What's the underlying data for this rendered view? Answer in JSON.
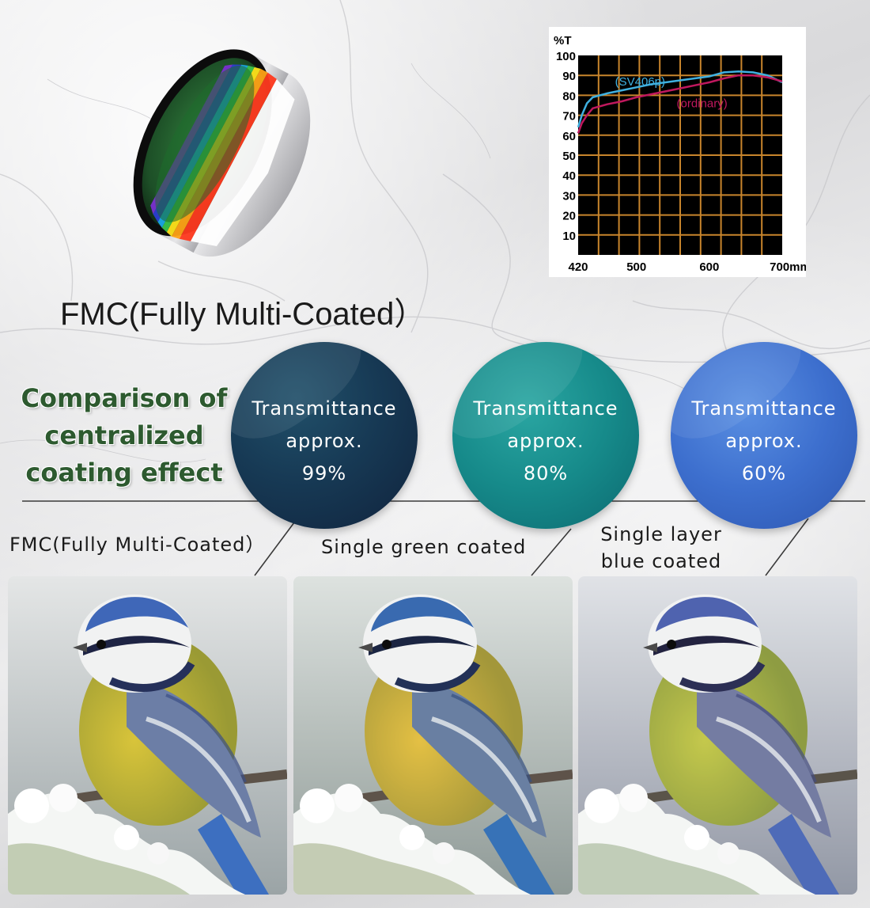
{
  "fmc_title": "FMC(Fully Multi-Coated）",
  "comparison_heading": [
    "Comparison of",
    "centralized",
    "coating effect"
  ],
  "chart_data": {
    "type": "line",
    "ylabel": "%T",
    "xlabel_unit": "mm",
    "x_tick_labels": [
      "420",
      "500",
      "600",
      "700mm"
    ],
    "y_tick_labels": [
      "10",
      "20",
      "30",
      "40",
      "50",
      "60",
      "70",
      "80",
      "90",
      "100"
    ],
    "xlim": [
      420,
      700
    ],
    "ylim": [
      0,
      100
    ],
    "grid": true,
    "background": "#000000",
    "grid_color": "#c8852c",
    "series": [
      {
        "name": "(SV406p)",
        "color": "#3fb0e0",
        "x": [
          420,
          425,
          432,
          440,
          460,
          480,
          500,
          520,
          540,
          560,
          580,
          600,
          620,
          640,
          660,
          680,
          700
        ],
        "y": [
          64,
          70,
          76,
          79,
          81,
          82.5,
          84,
          85.5,
          86.5,
          87.5,
          88.5,
          89.5,
          91.5,
          92,
          91.5,
          90,
          86.5
        ]
      },
      {
        "name": "(ordinary)",
        "color": "#c0185e",
        "x": [
          420,
          425,
          432,
          440,
          460,
          480,
          500,
          520,
          540,
          560,
          580,
          600,
          620,
          640,
          660,
          680,
          700
        ],
        "y": [
          61,
          66,
          70,
          73.5,
          75.5,
          77,
          79,
          80.5,
          82,
          83.5,
          85,
          86.5,
          88.5,
          90,
          90,
          89,
          87
        ]
      }
    ]
  },
  "circles": [
    {
      "line1": "Transmittance",
      "line2": "approx.",
      "value": "99%"
    },
    {
      "line1": "Transmittance",
      "line2": "approx.",
      "value": "80%"
    },
    {
      "line1": "Transmittance",
      "line2": "approx.",
      "value": "60%"
    }
  ],
  "captions": {
    "fmc": "FMC(Fully Multi-Coated）",
    "green": "Single green coated",
    "blue_line1": "Single layer",
    "blue_line2": "blue coated"
  },
  "colors": {
    "heading_green": "#2d5a2f",
    "circle_fmc": "#173a55",
    "circle_green": "#168a8a",
    "circle_blue": "#3d6fce"
  }
}
